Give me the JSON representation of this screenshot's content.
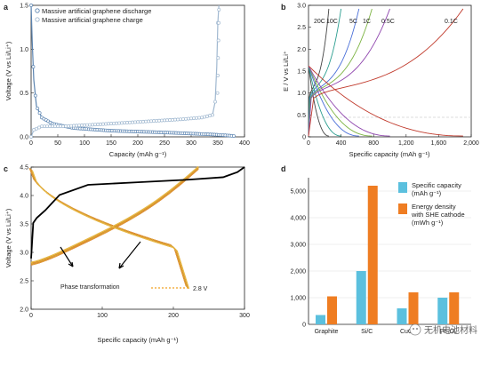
{
  "chart_data": [
    {
      "type": "line",
      "panel": "a",
      "xlabel": "Capacity (mAh g⁻¹)",
      "ylabel": "Voltage (V vs Li/Li⁺)",
      "xlim": [
        0,
        400
      ],
      "ylim": [
        0,
        1.5
      ],
      "xticks": [
        "0",
        "50",
        "100",
        "150",
        "200",
        "250",
        "300",
        "350",
        "400"
      ],
      "yticks": [
        "0.0",
        "0.5",
        "1.0",
        "1.5"
      ],
      "legend_position": "top-left",
      "series": [
        {
          "name": "Massive artificial graphene discharge",
          "color": "#5b84b1",
          "x": [
            0,
            2,
            5,
            10,
            20,
            40,
            80,
            150,
            250,
            330,
            360,
            380
          ],
          "y": [
            1.5,
            1.1,
            0.65,
            0.35,
            0.22,
            0.15,
            0.1,
            0.07,
            0.05,
            0.03,
            0.02,
            0.01
          ]
        },
        {
          "name": "Massive artificial graphene charge",
          "color": "#a0b8d0",
          "x": [
            0,
            5,
            20,
            60,
            120,
            200,
            280,
            320,
            340,
            345,
            348,
            350,
            352
          ],
          "y": [
            0.0,
            0.08,
            0.12,
            0.12,
            0.14,
            0.17,
            0.2,
            0.22,
            0.25,
            0.4,
            0.8,
            1.3,
            1.5
          ]
        }
      ]
    },
    {
      "type": "line",
      "panel": "b",
      "xlabel": "Specific capacity (mAh g⁻¹)",
      "ylabel": "E / V vs Li/Li⁺",
      "xlim": [
        0,
        2000
      ],
      "ylim": [
        0,
        3
      ],
      "xticks": [
        "0",
        "400",
        "800",
        "1,200",
        "1,600",
        "2,000"
      ],
      "yticks": [
        "0",
        "0.5",
        "1.0",
        "1.5",
        "2.0",
        "2.5",
        "3.0"
      ],
      "annotations": [
        "20C",
        "10C",
        "5C",
        "1C",
        "0.5C",
        "0.1C"
      ],
      "series": [
        {
          "name": "20C",
          "color": "#444444",
          "cap": 250
        },
        {
          "name": "10C",
          "color": "#2a9d8f",
          "cap": 400
        },
        {
          "name": "5C",
          "color": "#4a6fd8",
          "cap": 620
        },
        {
          "name": "1C",
          "color": "#7cb342",
          "cap": 780
        },
        {
          "name": "0.5C",
          "color": "#8e44ad",
          "cap": 1000
        },
        {
          "name": "0.1C",
          "color": "#c0392b",
          "cap": 1900
        }
      ]
    },
    {
      "type": "line",
      "panel": "c",
      "xlabel": "Specific capacity (mAh g⁻¹)",
      "ylabel": "Voltage (V vs Li/Li⁺)",
      "xlim": [
        0,
        300
      ],
      "ylim": [
        2.0,
        4.8
      ],
      "xticks": [
        "0",
        "100",
        "200",
        "300"
      ],
      "yticks": [
        "2.0",
        "2.5",
        "3.0",
        "3.5",
        "4.0",
        "4.5"
      ],
      "annotations": [
        "Phase transformation",
        "2.8 V"
      ],
      "series": [
        {
          "name": "first charge",
          "color": "#000000",
          "x": [
            0,
            3,
            8,
            20,
            40,
            80,
            150,
            220,
            270,
            290,
            300
          ],
          "y": [
            3.0,
            3.7,
            3.8,
            3.95,
            4.25,
            4.45,
            4.5,
            4.55,
            4.6,
            4.7,
            4.8
          ]
        }
      ]
    },
    {
      "type": "bar",
      "panel": "d",
      "categories": [
        "Graphite",
        "Si/C",
        "CuO₂",
        "Fe₃O₄"
      ],
      "ylim": [
        0,
        5500
      ],
      "yticks": [
        "0",
        "1,000",
        "2,000",
        "3,000",
        "4,000",
        "5,000"
      ],
      "legend_position": "top-right",
      "series": [
        {
          "name": "Specific capacity (mAh g⁻¹)",
          "color": "#5bc0de",
          "values": [
            350,
            2000,
            600,
            1000
          ]
        },
        {
          "name": "Energy density with SHE cathode (mWh g⁻¹)",
          "color": "#ef7d22",
          "values": [
            1050,
            5200,
            1200,
            1200
          ]
        }
      ]
    }
  ],
  "watermark": "无机电池材料"
}
